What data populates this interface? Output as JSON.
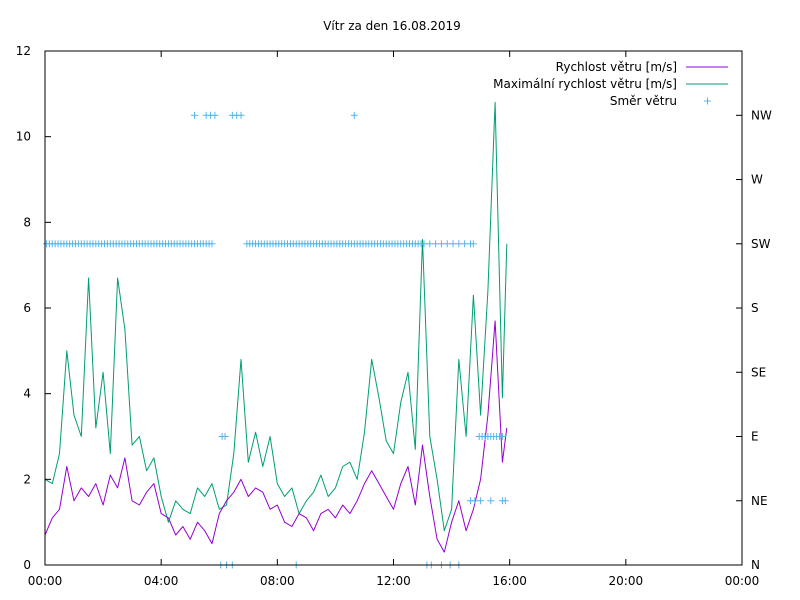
{
  "chart_data": {
    "type": "line",
    "title": "Vítr za den 16.08.2019",
    "xlabel": "",
    "ylabel": "",
    "x_ticks": [
      "00:00",
      "04:00",
      "08:00",
      "12:00",
      "16:00",
      "20:00",
      "00:00"
    ],
    "x_range_hours": [
      0,
      24
    ],
    "y_ticks": [
      "0",
      "2",
      "4",
      "6",
      "8",
      "10",
      "12"
    ],
    "ylim": [
      0,
      12
    ],
    "y2_ticks": [
      "N",
      "NE",
      "E",
      "SE",
      "S",
      "SW",
      "W",
      "NW"
    ],
    "y2_range_index": [
      0,
      7
    ],
    "grid": false,
    "legend_position": "top-right",
    "colors": {
      "speed": "#9400d3",
      "max_speed": "#009e73",
      "direction": "#56b4e9"
    },
    "series": [
      {
        "name": "Rychlost větru [m/s]",
        "axis": "left",
        "style": "line",
        "x_hours": [
          0.0,
          0.25,
          0.5,
          0.75,
          1.0,
          1.25,
          1.5,
          1.75,
          2.0,
          2.25,
          2.5,
          2.75,
          3.0,
          3.25,
          3.5,
          3.75,
          4.0,
          4.25,
          4.5,
          4.75,
          5.0,
          5.25,
          5.5,
          5.75,
          6.0,
          6.25,
          6.5,
          6.75,
          7.0,
          7.25,
          7.5,
          7.75,
          8.0,
          8.25,
          8.5,
          8.75,
          9.0,
          9.25,
          9.5,
          9.75,
          10.0,
          10.25,
          10.5,
          10.75,
          11.0,
          11.25,
          11.5,
          11.75,
          12.0,
          12.25,
          12.5,
          12.75,
          13.0,
          13.25,
          13.5,
          13.75,
          14.0,
          14.25,
          14.5,
          14.75,
          15.0,
          15.25,
          15.5,
          15.75,
          15.9
        ],
        "values": [
          0.7,
          1.1,
          1.3,
          2.3,
          1.5,
          1.8,
          1.6,
          1.9,
          1.4,
          2.1,
          1.8,
          2.5,
          1.5,
          1.4,
          1.7,
          1.9,
          1.2,
          1.1,
          0.7,
          0.9,
          0.6,
          1.0,
          0.8,
          0.5,
          1.2,
          1.5,
          1.7,
          2.0,
          1.6,
          1.8,
          1.7,
          1.3,
          1.4,
          1.0,
          0.9,
          1.2,
          1.1,
          0.8,
          1.2,
          1.3,
          1.1,
          1.4,
          1.2,
          1.5,
          1.9,
          2.2,
          1.9,
          1.6,
          1.3,
          1.9,
          2.3,
          1.4,
          2.8,
          1.6,
          0.6,
          0.3,
          1.0,
          1.5,
          0.8,
          1.3,
          2.0,
          3.5,
          5.7,
          2.4,
          3.2
        ]
      },
      {
        "name": "Maximální rychlost větru [m/s]",
        "axis": "left",
        "style": "line",
        "x_hours": [
          0.0,
          0.25,
          0.5,
          0.75,
          1.0,
          1.25,
          1.5,
          1.75,
          2.0,
          2.25,
          2.5,
          2.75,
          3.0,
          3.25,
          3.5,
          3.75,
          4.0,
          4.25,
          4.5,
          4.75,
          5.0,
          5.25,
          5.5,
          5.75,
          6.0,
          6.25,
          6.5,
          6.75,
          7.0,
          7.25,
          7.5,
          7.75,
          8.0,
          8.25,
          8.5,
          8.75,
          9.0,
          9.25,
          9.5,
          9.75,
          10.0,
          10.25,
          10.5,
          10.75,
          11.0,
          11.25,
          11.5,
          11.75,
          12.0,
          12.25,
          12.5,
          12.75,
          13.0,
          13.25,
          13.5,
          13.75,
          14.0,
          14.25,
          14.5,
          14.75,
          15.0,
          15.25,
          15.5,
          15.75,
          15.9
        ],
        "values": [
          2.0,
          1.9,
          2.6,
          5.0,
          3.5,
          3.0,
          6.7,
          3.2,
          4.5,
          2.6,
          6.7,
          5.5,
          2.8,
          3.0,
          2.2,
          2.5,
          1.6,
          1.0,
          1.5,
          1.3,
          1.2,
          1.8,
          1.6,
          1.9,
          1.3,
          1.4,
          2.6,
          4.8,
          2.4,
          3.1,
          2.3,
          3.0,
          1.9,
          1.6,
          1.8,
          1.2,
          1.5,
          1.7,
          2.1,
          1.6,
          1.8,
          2.3,
          2.4,
          2.0,
          3.1,
          4.8,
          3.9,
          2.9,
          2.6,
          3.8,
          4.5,
          2.7,
          7.6,
          3.0,
          2.0,
          0.8,
          1.3,
          4.8,
          3.0,
          6.3,
          3.5,
          6.4,
          10.8,
          3.9,
          7.5
        ]
      },
      {
        "name": "Směr větru",
        "axis": "right",
        "style": "points",
        "points": [
          [
            0.05,
            5
          ],
          [
            0.15,
            5
          ],
          [
            0.25,
            5
          ],
          [
            0.35,
            5
          ],
          [
            0.45,
            5
          ],
          [
            0.55,
            5
          ],
          [
            0.65,
            5
          ],
          [
            0.75,
            5
          ],
          [
            0.85,
            5
          ],
          [
            0.95,
            5
          ],
          [
            1.05,
            5
          ],
          [
            1.15,
            5
          ],
          [
            1.25,
            5
          ],
          [
            1.35,
            5
          ],
          [
            1.45,
            5
          ],
          [
            1.55,
            5
          ],
          [
            1.65,
            5
          ],
          [
            1.75,
            5
          ],
          [
            1.85,
            5
          ],
          [
            1.95,
            5
          ],
          [
            2.05,
            5
          ],
          [
            2.15,
            5
          ],
          [
            2.25,
            5
          ],
          [
            2.35,
            5
          ],
          [
            2.45,
            5
          ],
          [
            2.55,
            5
          ],
          [
            2.65,
            5
          ],
          [
            2.75,
            5
          ],
          [
            2.85,
            5
          ],
          [
            2.95,
            5
          ],
          [
            3.05,
            5
          ],
          [
            3.15,
            5
          ],
          [
            3.25,
            5
          ],
          [
            3.35,
            5
          ],
          [
            3.45,
            5
          ],
          [
            3.55,
            5
          ],
          [
            3.65,
            5
          ],
          [
            3.75,
            5
          ],
          [
            3.85,
            5
          ],
          [
            3.95,
            5
          ],
          [
            4.05,
            5
          ],
          [
            4.15,
            5
          ],
          [
            4.25,
            5
          ],
          [
            4.35,
            5
          ],
          [
            4.45,
            5
          ],
          [
            4.55,
            5
          ],
          [
            4.65,
            5
          ],
          [
            4.75,
            5
          ],
          [
            4.85,
            5
          ],
          [
            4.95,
            5
          ],
          [
            5.05,
            5
          ],
          [
            5.15,
            5
          ],
          [
            5.25,
            5
          ],
          [
            5.35,
            5
          ],
          [
            5.45,
            5
          ],
          [
            5.55,
            5
          ],
          [
            5.65,
            5
          ],
          [
            5.75,
            5
          ],
          [
            5.15,
            7
          ],
          [
            5.55,
            7
          ],
          [
            5.7,
            7
          ],
          [
            5.85,
            7
          ],
          [
            6.45,
            7
          ],
          [
            6.6,
            7
          ],
          [
            6.75,
            7
          ],
          [
            10.65,
            7
          ],
          [
            6.1,
            2
          ],
          [
            6.2,
            2
          ],
          [
            6.05,
            0
          ],
          [
            6.25,
            0
          ],
          [
            6.45,
            0
          ],
          [
            8.65,
            0
          ],
          [
            6.95,
            5
          ],
          [
            7.05,
            5
          ],
          [
            7.15,
            5
          ],
          [
            7.25,
            5
          ],
          [
            7.35,
            5
          ],
          [
            7.45,
            5
          ],
          [
            7.55,
            5
          ],
          [
            7.65,
            5
          ],
          [
            7.75,
            5
          ],
          [
            7.85,
            5
          ],
          [
            7.95,
            5
          ],
          [
            8.05,
            5
          ],
          [
            8.15,
            5
          ],
          [
            8.25,
            5
          ],
          [
            8.35,
            5
          ],
          [
            8.45,
            5
          ],
          [
            8.55,
            5
          ],
          [
            8.65,
            5
          ],
          [
            8.75,
            5
          ],
          [
            8.85,
            5
          ],
          [
            8.95,
            5
          ],
          [
            9.05,
            5
          ],
          [
            9.15,
            5
          ],
          [
            9.25,
            5
          ],
          [
            9.35,
            5
          ],
          [
            9.45,
            5
          ],
          [
            9.55,
            5
          ],
          [
            9.65,
            5
          ],
          [
            9.75,
            5
          ],
          [
            9.85,
            5
          ],
          [
            9.95,
            5
          ],
          [
            10.05,
            5
          ],
          [
            10.15,
            5
          ],
          [
            10.25,
            5
          ],
          [
            10.35,
            5
          ],
          [
            10.45,
            5
          ],
          [
            10.55,
            5
          ],
          [
            10.65,
            5
          ],
          [
            10.75,
            5
          ],
          [
            10.85,
            5
          ],
          [
            10.95,
            5
          ],
          [
            11.05,
            5
          ],
          [
            11.15,
            5
          ],
          [
            11.25,
            5
          ],
          [
            11.35,
            5
          ],
          [
            11.45,
            5
          ],
          [
            11.55,
            5
          ],
          [
            11.65,
            5
          ],
          [
            11.75,
            5
          ],
          [
            11.85,
            5
          ],
          [
            11.95,
            5
          ],
          [
            12.05,
            5
          ],
          [
            12.15,
            5
          ],
          [
            12.25,
            5
          ],
          [
            12.35,
            5
          ],
          [
            12.45,
            5
          ],
          [
            12.55,
            5
          ],
          [
            12.65,
            5
          ],
          [
            12.75,
            5
          ],
          [
            12.85,
            5
          ],
          [
            12.95,
            5
          ],
          [
            13.05,
            5
          ],
          [
            13.25,
            5
          ],
          [
            13.45,
            5
          ],
          [
            13.65,
            5
          ],
          [
            13.85,
            5
          ],
          [
            14.05,
            5
          ],
          [
            14.25,
            5
          ],
          [
            14.45,
            5
          ],
          [
            14.65,
            5
          ],
          [
            14.75,
            5
          ],
          [
            13.15,
            0
          ],
          [
            13.3,
            0
          ],
          [
            13.65,
            0
          ],
          [
            13.95,
            0
          ],
          [
            14.25,
            0
          ],
          [
            14.65,
            1
          ],
          [
            14.8,
            1
          ],
          [
            15.0,
            1
          ],
          [
            15.35,
            1
          ],
          [
            15.75,
            1
          ],
          [
            15.85,
            1
          ],
          [
            14.95,
            2
          ],
          [
            15.05,
            2
          ],
          [
            15.15,
            2
          ],
          [
            15.25,
            2
          ],
          [
            15.35,
            2
          ],
          [
            15.45,
            2
          ],
          [
            15.55,
            2
          ],
          [
            15.65,
            2
          ],
          [
            15.75,
            2
          ]
        ]
      }
    ]
  }
}
